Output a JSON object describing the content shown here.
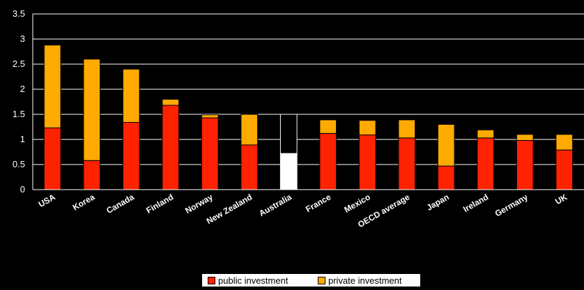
{
  "chart_data": {
    "type": "bar",
    "stacked": true,
    "categories": [
      "USA",
      "Korea",
      "Canada",
      "Finland",
      "Norway",
      "New Zealand",
      "Australia",
      "France",
      "Mexico",
      "OECD average",
      "Japan",
      "Ireland",
      "Germany",
      "UK"
    ],
    "series": [
      {
        "name": "public investment",
        "values": [
          1.23,
          0.58,
          1.34,
          1.68,
          1.43,
          0.89,
          0.72,
          1.12,
          1.09,
          1.03,
          0.47,
          1.03,
          0.98,
          0.79
        ]
      },
      {
        "name": "private investment",
        "values": [
          1.65,
          2.02,
          1.06,
          0.12,
          0.06,
          0.61,
          0.78,
          0.27,
          0.29,
          0.36,
          0.83,
          0.16,
          0.12,
          0.31
        ]
      }
    ],
    "highlight": {
      "category": "Australia",
      "series_colors": [
        "#ffffff",
        "#000000"
      ]
    },
    "colors": {
      "public investment": "#ff2200",
      "private investment": "#ffaa00",
      "background": "#000000",
      "gridline": "#ffffff",
      "text": "#ffffff"
    },
    "yticks": [
      "0",
      "0.5",
      "1",
      "1.5",
      "2",
      "2.5",
      "3",
      "3.5"
    ],
    "ylim": [
      0,
      3.5
    ],
    "grid": true,
    "legend_position": "bottom",
    "title": "",
    "xlabel": "",
    "ylabel": ""
  }
}
